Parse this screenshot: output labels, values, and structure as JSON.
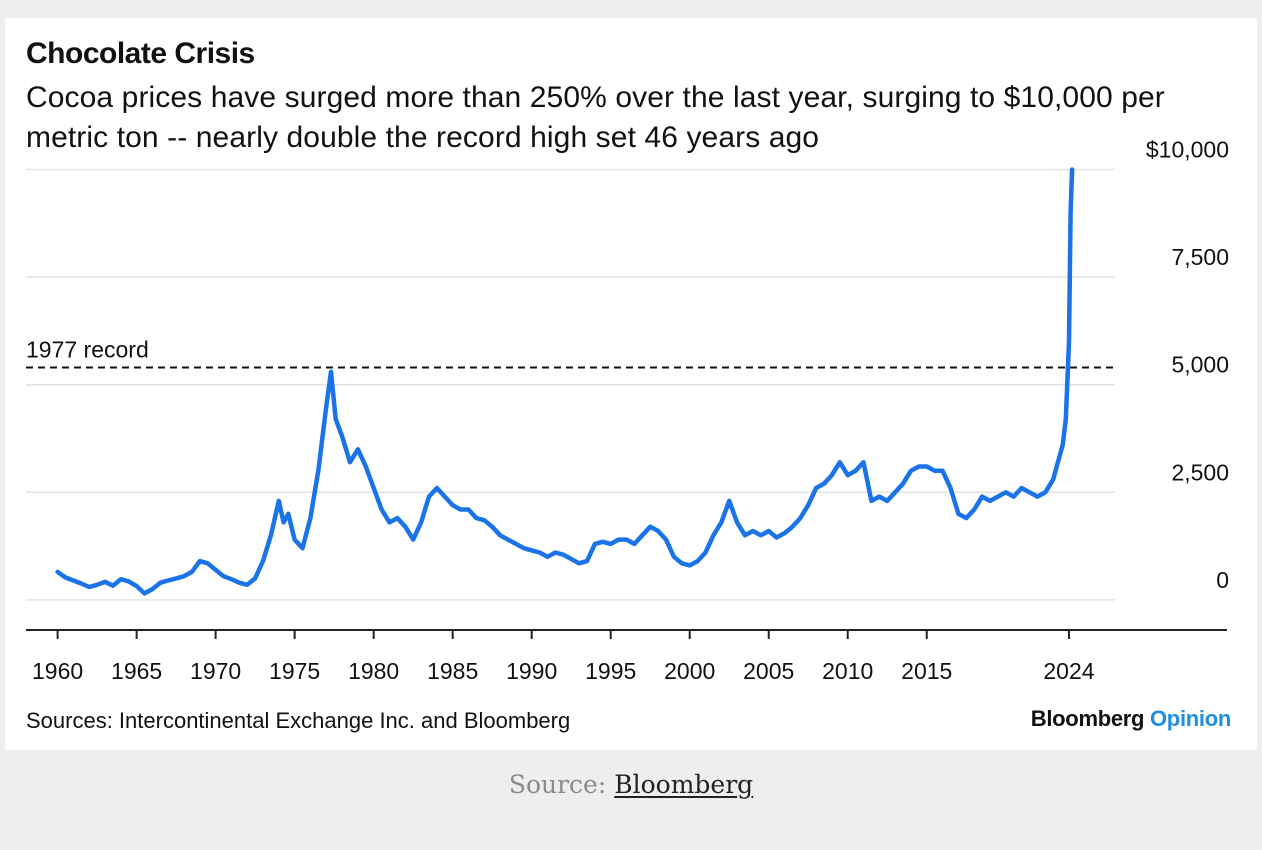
{
  "chart_data": {
    "type": "line",
    "title": "Chocolate Crisis",
    "subtitle": "Cocoa prices have surged more than 250% over the last year, surging to $10,000 per metric ton -- nearly double the record high set 46 years ago",
    "xlabel": "",
    "ylabel": "",
    "xlim": [
      1958,
      2034
    ],
    "ylim": [
      -700,
      10500
    ],
    "x_ticks": [
      1960,
      1965,
      1970,
      1975,
      1980,
      1985,
      1990,
      1995,
      2000,
      2005,
      2010,
      2015,
      2024
    ],
    "x_tick_labels": [
      "1960",
      "1965",
      "1970",
      "1975",
      "1980",
      "1985",
      "1990",
      "1995",
      "2000",
      "2005",
      "2010",
      "2015",
      "2024"
    ],
    "y_ticks": [
      0,
      2500,
      5000,
      7500,
      10000
    ],
    "y_tick_labels": [
      "0",
      "2,500",
      "5,000",
      "7,500",
      "$10,000"
    ],
    "y_axis_position": "right",
    "grid": "horizontal",
    "legend": "none",
    "reference_line": {
      "value": 5400,
      "label": "1977 record",
      "style": "dashed"
    },
    "series": [
      {
        "color": "#1a73e8",
        "x": [
          1960.0,
          1960.5,
          1961.0,
          1961.5,
          1962.0,
          1962.5,
          1963.0,
          1963.5,
          1964.0,
          1964.5,
          1965.0,
          1965.5,
          1966.0,
          1966.5,
          1967.0,
          1967.5,
          1968.0,
          1968.5,
          1969.0,
          1969.5,
          1970.0,
          1970.5,
          1971.0,
          1971.5,
          1972.0,
          1972.5,
          1973.0,
          1973.5,
          1974.0,
          1974.3,
          1974.6,
          1975.0,
          1975.5,
          1976.0,
          1976.5,
          1977.0,
          1977.3,
          1977.6,
          1978.0,
          1978.5,
          1979.0,
          1979.5,
          1980.0,
          1980.5,
          1981.0,
          1981.5,
          1982.0,
          1982.5,
          1983.0,
          1983.5,
          1984.0,
          1984.5,
          1985.0,
          1985.5,
          1986.0,
          1986.5,
          1987.0,
          1987.5,
          1988.0,
          1988.5,
          1989.0,
          1989.5,
          1990.0,
          1990.5,
          1991.0,
          1991.5,
          1992.0,
          1992.5,
          1993.0,
          1993.5,
          1994.0,
          1994.5,
          1995.0,
          1995.5,
          1996.0,
          1996.5,
          1997.0,
          1997.5,
          1998.0,
          1998.5,
          1999.0,
          1999.5,
          2000.0,
          2000.5,
          2001.0,
          2001.5,
          2002.0,
          2002.5,
          2003.0,
          2003.5,
          2004.0,
          2004.5,
          2005.0,
          2005.5,
          2006.0,
          2006.5,
          2007.0,
          2007.5,
          2008.0,
          2008.5,
          2009.0,
          2009.5,
          2010.0,
          2010.5,
          2011.0,
          2011.5,
          2012.0,
          2012.5,
          2013.0,
          2013.5,
          2014.0,
          2014.5,
          2015.0,
          2015.5,
          2016.0,
          2016.5,
          2017.0,
          2017.5,
          2018.0,
          2018.5,
          2019.0,
          2019.5,
          2020.0,
          2020.5,
          2021.0,
          2021.5,
          2022.0,
          2022.5,
          2023.0,
          2023.3,
          2023.6,
          2023.8,
          2024.0,
          2024.1,
          2024.2
        ],
        "y": [
          650,
          520,
          450,
          380,
          300,
          350,
          420,
          330,
          480,
          430,
          320,
          150,
          250,
          400,
          450,
          500,
          550,
          650,
          900,
          850,
          700,
          550,
          480,
          400,
          350,
          500,
          900,
          1500,
          2300,
          1800,
          2000,
          1400,
          1200,
          1900,
          3000,
          4500,
          5300,
          4200,
          3800,
          3200,
          3500,
          3100,
          2600,
          2100,
          1800,
          1900,
          1700,
          1400,
          1800,
          2400,
          2600,
          2400,
          2200,
          2100,
          2100,
          1900,
          1850,
          1700,
          1500,
          1400,
          1300,
          1200,
          1150,
          1100,
          1000,
          1100,
          1050,
          950,
          850,
          900,
          1300,
          1350,
          1300,
          1400,
          1400,
          1300,
          1500,
          1700,
          1600,
          1400,
          1000,
          850,
          800,
          900,
          1100,
          1500,
          1800,
          2300,
          1800,
          1500,
          1600,
          1500,
          1600,
          1450,
          1550,
          1700,
          1900,
          2200,
          2600,
          2700,
          2900,
          3200,
          2900,
          3000,
          3200,
          2300,
          2400,
          2300,
          2500,
          2700,
          3000,
          3100,
          3100,
          3000,
          3000,
          2600,
          2000,
          1900,
          2100,
          2400,
          2300,
          2400,
          2500,
          2400,
          2600,
          2500,
          2400,
          2500,
          2800,
          3200,
          3600,
          4200,
          6000,
          9000,
          10000
        ]
      }
    ]
  },
  "sources_text": "Sources: Intercontinental Exchange Inc. and Bloomberg",
  "brand": {
    "name": "Bloomberg",
    "suffix": "Opinion"
  },
  "footer": {
    "prefix": "Source:",
    "link": "Bloomberg"
  }
}
